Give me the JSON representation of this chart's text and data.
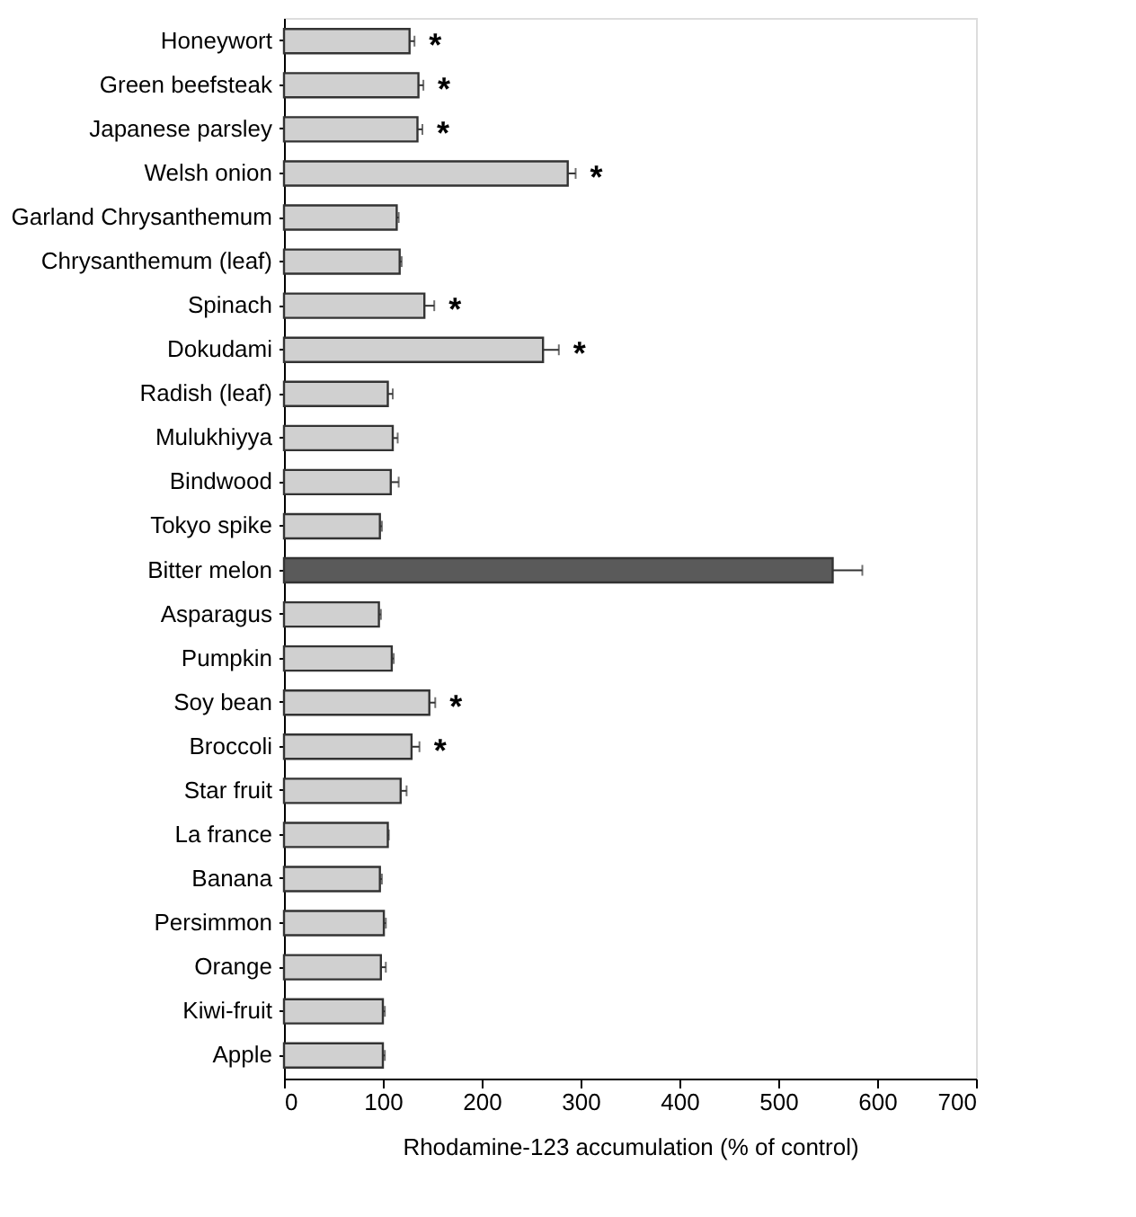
{
  "chart_data": {
    "type": "bar",
    "orientation": "horizontal",
    "xlabel": "Rhodamine-123 accumulation (% of control)",
    "categories": [
      "Honeywort",
      "Green beefsteak",
      "Japanese parsley",
      "Welsh onion",
      "Garland Chrysanthemum",
      "Chrysanthemum (leaf)",
      "Spinach",
      "Dokudami",
      "Radish (leaf)",
      "Mulukhiyya",
      "Bindwood",
      "Tokyo spike",
      "Bitter melon",
      "Asparagus",
      "Pumpkin",
      "Soy bean",
      "Broccoli",
      "Star fruit",
      "La france",
      "Banana",
      "Persimmon",
      "Orange",
      "Kiwi-fruit",
      "Apple"
    ],
    "values": [
      127,
      136,
      135,
      287,
      114,
      117,
      142,
      262,
      105,
      110,
      108,
      97,
      555,
      96,
      109,
      147,
      129,
      118,
      105,
      97,
      101,
      98,
      100,
      100
    ],
    "errors": [
      [
        127,
        132
      ],
      [
        136,
        141
      ],
      [
        135,
        140
      ],
      [
        287,
        295
      ],
      [
        114,
        116
      ],
      [
        117,
        119
      ],
      [
        142,
        152
      ],
      [
        262,
        278
      ],
      [
        105,
        110
      ],
      [
        110,
        115
      ],
      [
        108,
        116
      ],
      [
        97,
        99
      ],
      [
        555,
        585
      ],
      [
        96,
        98
      ],
      [
        109,
        111
      ],
      [
        147,
        153
      ],
      [
        129,
        137
      ],
      [
        118,
        124
      ],
      [
        105,
        106
      ],
      [
        97,
        99
      ],
      [
        101,
        103
      ],
      [
        98,
        103
      ],
      [
        100,
        102
      ],
      [
        100,
        102
      ]
    ],
    "colors": [
      "#d0d0d0",
      "#d0d0d0",
      "#d0d0d0",
      "#d0d0d0",
      "#d0d0d0",
      "#d0d0d0",
      "#d0d0d0",
      "#d0d0d0",
      "#d0d0d0",
      "#d0d0d0",
      "#d0d0d0",
      "#d0d0d0",
      "#5a5a5a",
      "#d0d0d0",
      "#d0d0d0",
      "#d0d0d0",
      "#d0d0d0",
      "#d0d0d0",
      "#d0d0d0",
      "#d0d0d0",
      "#d0d0d0",
      "#d0d0d0",
      "#d0d0d0",
      "#d0d0d0"
    ],
    "xlim": [
      0,
      700
    ],
    "xticks": [
      0,
      100,
      200,
      300,
      400,
      500,
      600,
      700
    ],
    "grid": false,
    "annotations": [
      {
        "text": "*",
        "x": 132,
        "y": "Honeywort"
      },
      {
        "text": "*",
        "x": 141,
        "y": "Green beefsteak"
      },
      {
        "text": "*",
        "x": 140,
        "y": "Japanese parsley"
      },
      {
        "text": "*",
        "x": 295,
        "y": "Welsh onion"
      },
      {
        "text": "*",
        "x": 152,
        "y": "Spinach"
      },
      {
        "text": "*",
        "x": 278,
        "y": "Dokudami"
      },
      {
        "text": "*",
        "x": 153,
        "y": "Soy bean"
      },
      {
        "text": "*",
        "x": 137,
        "y": "Broccoli"
      }
    ]
  }
}
